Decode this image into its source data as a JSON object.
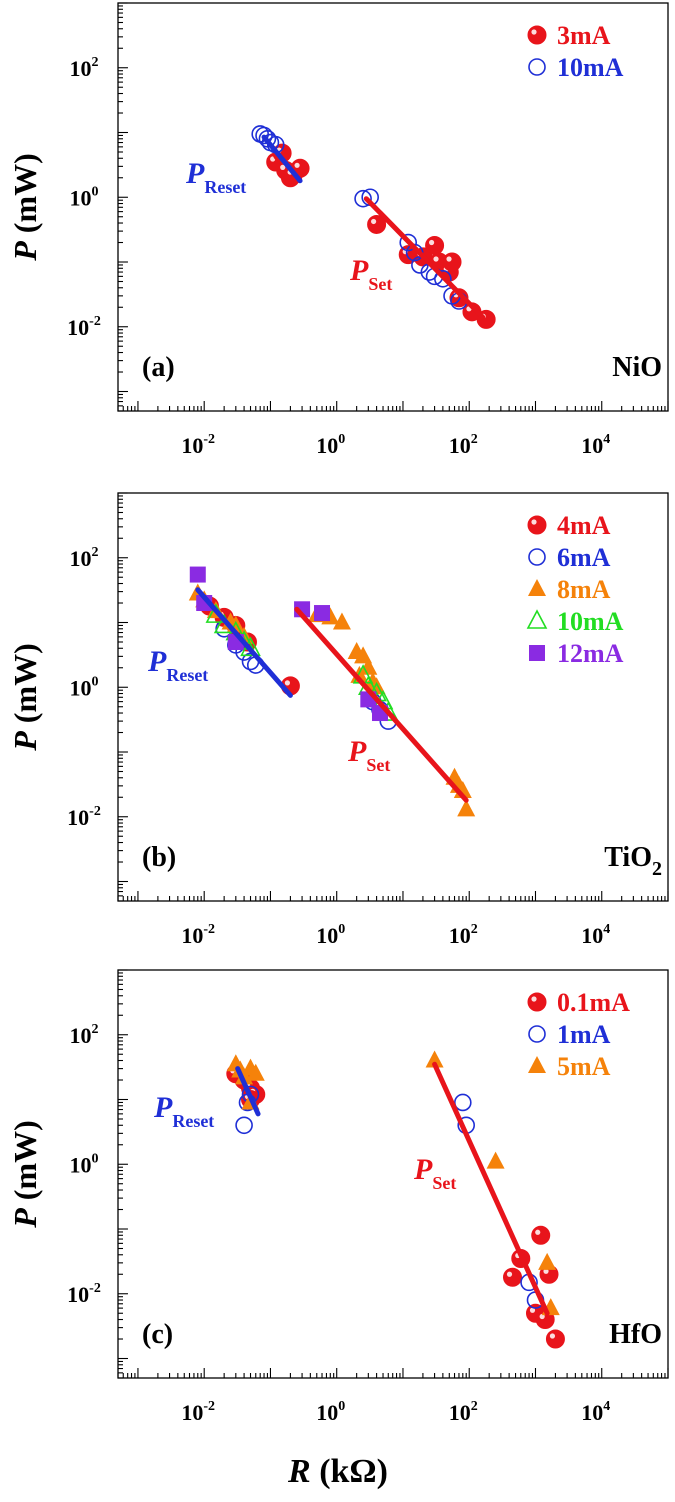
{
  "figure": {
    "x_axis_label_var": "R",
    "x_axis_label_unit": " (kΩ)",
    "y_axis_label_var": "P",
    "y_axis_label_unit": " (mW)"
  },
  "colors": {
    "red": "#e8141b",
    "blue": "#1f2fd6",
    "orange": "#f5820a",
    "green": "#22dd22",
    "purple": "#8a2be2",
    "axis": "#000000"
  },
  "chart_data": [
    {
      "type": "scatter",
      "panel_label": "(a)",
      "material": "NiO",
      "material_sub": "",
      "xscale": "log",
      "yscale": "log",
      "xlim": [
        0.0005,
        100000
      ],
      "ylim": [
        0.0005,
        1000
      ],
      "xticks": [
        {
          "base": "10",
          "exp": "-2",
          "value": 0.01
        },
        {
          "base": "10",
          "exp": "0",
          "value": 1
        },
        {
          "base": "10",
          "exp": "2",
          "value": 100
        },
        {
          "base": "10",
          "exp": "4",
          "value": 10000
        }
      ],
      "yticks": [
        {
          "base": "10",
          "exp": "-2",
          "value": 0.01
        },
        {
          "base": "10",
          "exp": "0",
          "value": 1
        },
        {
          "base": "10",
          "exp": "2",
          "value": 100
        }
      ],
      "legend_position": "top-right",
      "series": [
        {
          "name": "3mA",
          "marker": "filled-circle",
          "color": "red",
          "points": [
            [
              0.12,
              3.5
            ],
            [
              0.15,
              4.8
            ],
            [
              0.17,
              2.6
            ],
            [
              0.2,
              2.0
            ],
            [
              0.22,
              2.2
            ],
            [
              0.28,
              2.8
            ],
            [
              4,
              0.38
            ],
            [
              12,
              0.13
            ],
            [
              20,
              0.12
            ],
            [
              30,
              0.18
            ],
            [
              35,
              0.1
            ],
            [
              50,
              0.07
            ],
            [
              55,
              0.1
            ],
            [
              70,
              0.028
            ],
            [
              110,
              0.017
            ],
            [
              180,
              0.013
            ]
          ]
        },
        {
          "name": "10mA",
          "marker": "open-circle",
          "color": "blue",
          "points": [
            [
              0.07,
              9.5
            ],
            [
              0.08,
              9.0
            ],
            [
              0.09,
              8.0
            ],
            [
              0.1,
              7.0
            ],
            [
              0.12,
              6.5
            ],
            [
              2.5,
              0.95
            ],
            [
              3.2,
              1.0
            ],
            [
              12,
              0.2
            ],
            [
              15,
              0.14
            ],
            [
              18,
              0.09
            ],
            [
              25,
              0.07
            ],
            [
              30,
              0.06
            ],
            [
              40,
              0.055
            ],
            [
              55,
              0.03
            ],
            [
              70,
              0.025
            ]
          ]
        }
      ],
      "fits": [
        {
          "label_var": "P",
          "label_sub": "Reset",
          "color": "blue",
          "from": [
            0.08,
            8.5
          ],
          "to": [
            0.28,
            1.8
          ]
        },
        {
          "label_var": "P",
          "label_sub": "Set",
          "color": "red",
          "from": [
            2.8,
            0.95
          ],
          "to": [
            160,
            0.014
          ]
        }
      ]
    },
    {
      "type": "scatter",
      "panel_label": "(b)",
      "material": "TiO",
      "material_sub": "2",
      "xscale": "log",
      "yscale": "log",
      "xlim": [
        0.0005,
        100000
      ],
      "ylim": [
        0.0005,
        1000
      ],
      "xticks": [
        {
          "base": "10",
          "exp": "-2",
          "value": 0.01
        },
        {
          "base": "10",
          "exp": "0",
          "value": 1
        },
        {
          "base": "10",
          "exp": "2",
          "value": 100
        },
        {
          "base": "10",
          "exp": "4",
          "value": 10000
        }
      ],
      "yticks": [
        {
          "base": "10",
          "exp": "-2",
          "value": 0.01
        },
        {
          "base": "10",
          "exp": "0",
          "value": 1
        },
        {
          "base": "10",
          "exp": "2",
          "value": 100
        }
      ],
      "legend_position": "top-right",
      "series": [
        {
          "name": "4mA",
          "marker": "filled-circle",
          "color": "red",
          "points": [
            [
              0.012,
              18
            ],
            [
              0.02,
              12
            ],
            [
              0.03,
              9
            ],
            [
              0.045,
              5
            ],
            [
              0.2,
              1.05
            ]
          ]
        },
        {
          "name": "6mA",
          "marker": "open-circle",
          "color": "blue",
          "points": [
            [
              0.02,
              8
            ],
            [
              0.03,
              4.5
            ],
            [
              0.04,
              3.5
            ],
            [
              0.05,
              2.5
            ],
            [
              0.06,
              2.2
            ],
            [
              3.5,
              0.6
            ],
            [
              4.5,
              0.45
            ],
            [
              6,
              0.3
            ]
          ]
        },
        {
          "name": "8mA",
          "marker": "filled-triangle",
          "color": "orange",
          "points": [
            [
              0.008,
              28
            ],
            [
              0.01,
              22
            ],
            [
              0.015,
              15
            ],
            [
              0.025,
              10
            ],
            [
              0.03,
              9
            ],
            [
              0.04,
              6
            ],
            [
              0.5,
              13
            ],
            [
              0.8,
              12
            ],
            [
              1.2,
              10
            ],
            [
              2,
              3.5
            ],
            [
              2.5,
              3
            ],
            [
              3,
              2
            ],
            [
              2.2,
              1.5
            ],
            [
              3.5,
              1.2
            ],
            [
              4,
              1
            ],
            [
              60,
              0.04
            ],
            [
              70,
              0.03
            ],
            [
              80,
              0.025
            ],
            [
              90,
              0.013
            ]
          ]
        },
        {
          "name": "10mA",
          "marker": "open-triangle",
          "color": "green",
          "points": [
            [
              0.015,
              13
            ],
            [
              0.02,
              9
            ],
            [
              0.03,
              7
            ],
            [
              0.04,
              5
            ],
            [
              0.05,
              4
            ],
            [
              2.5,
              1.5
            ],
            [
              3,
              1
            ],
            [
              4,
              0.8
            ],
            [
              5,
              0.6
            ],
            [
              6,
              0.4
            ]
          ]
        },
        {
          "name": "12mA",
          "marker": "filled-square",
          "color": "purple",
          "points": [
            [
              0.008,
              55
            ],
            [
              0.01,
              20
            ],
            [
              0.03,
              5
            ],
            [
              0.3,
              16
            ],
            [
              0.6,
              14
            ],
            [
              3,
              0.65
            ],
            [
              4.5,
              0.4
            ]
          ]
        }
      ],
      "fits": [
        {
          "label_var": "P",
          "label_sub": "Reset",
          "color": "blue",
          "from": [
            0.008,
            32
          ],
          "to": [
            0.2,
            0.75
          ]
        },
        {
          "label_var": "P",
          "label_sub": "Set",
          "color": "red",
          "from": [
            0.25,
            16
          ],
          "to": [
            90,
            0.018
          ]
        }
      ]
    },
    {
      "type": "scatter",
      "panel_label": "(c)",
      "material": "HfO",
      "material_sub": "",
      "xscale": "log",
      "yscale": "log",
      "xlim": [
        0.0005,
        100000
      ],
      "ylim": [
        0.0005,
        1000
      ],
      "xticks": [
        {
          "base": "10",
          "exp": "-2",
          "value": 0.01
        },
        {
          "base": "10",
          "exp": "0",
          "value": 1
        },
        {
          "base": "10",
          "exp": "2",
          "value": 100
        },
        {
          "base": "10",
          "exp": "4",
          "value": 10000
        }
      ],
      "yticks": [
        {
          "base": "10",
          "exp": "-2",
          "value": 0.01
        },
        {
          "base": "10",
          "exp": "0",
          "value": 1
        },
        {
          "base": "10",
          "exp": "2",
          "value": 100
        }
      ],
      "legend_position": "top-right",
      "series": [
        {
          "name": "0.1mA",
          "marker": "filled-circle",
          "color": "red",
          "points": [
            [
              0.03,
              25
            ],
            [
              0.04,
              20
            ],
            [
              0.05,
              15
            ],
            [
              0.06,
              12
            ],
            [
              0.05,
              10
            ],
            [
              450,
              0.018
            ],
            [
              600,
              0.035
            ],
            [
              1000,
              0.005
            ],
            [
              1200,
              0.08
            ],
            [
              1400,
              0.004
            ],
            [
              1600,
              0.02
            ],
            [
              2000,
              0.002
            ]
          ]
        },
        {
          "name": "1mA",
          "marker": "open-circle",
          "color": "blue",
          "points": [
            [
              0.04,
              4
            ],
            [
              0.045,
              9
            ],
            [
              0.05,
              12
            ],
            [
              80,
              9
            ],
            [
              90,
              4
            ],
            [
              800,
              0.015
            ],
            [
              1000,
              0.008
            ]
          ]
        },
        {
          "name": "5mA",
          "marker": "filled-triangle",
          "color": "orange",
          "points": [
            [
              0.03,
              35
            ],
            [
              0.035,
              28
            ],
            [
              0.04,
              22
            ],
            [
              0.05,
              30
            ],
            [
              0.06,
              25
            ],
            [
              0.05,
              9
            ],
            [
              30,
              40
            ],
            [
              250,
              1.1
            ],
            [
              1500,
              0.03
            ],
            [
              1700,
              0.006
            ]
          ]
        }
      ],
      "fits": [
        {
          "label_var": "P",
          "label_sub": "Reset",
          "color": "blue",
          "from": [
            0.032,
            30
          ],
          "to": [
            0.065,
            6
          ]
        },
        {
          "label_var": "P",
          "label_sub": "Set",
          "color": "red",
          "from": [
            30,
            35
          ],
          "to": [
            1500,
            0.005
          ]
        }
      ]
    }
  ]
}
